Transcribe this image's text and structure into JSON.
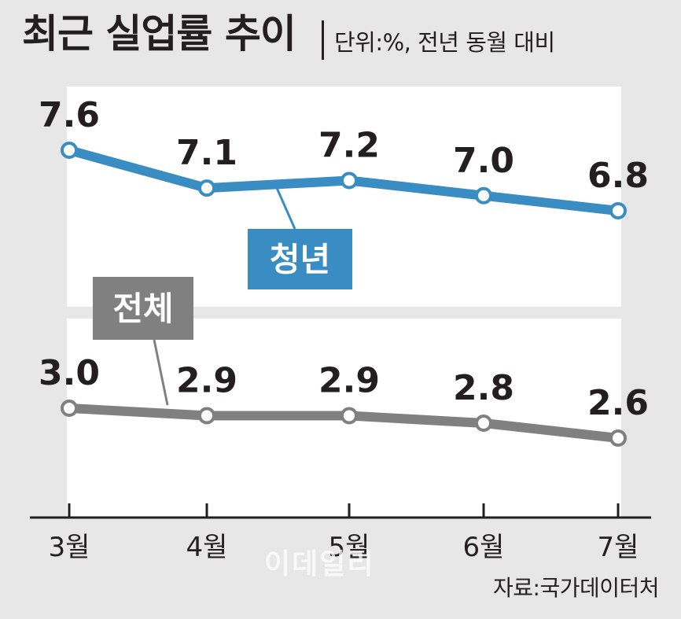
{
  "title": "최근 실업률 추이",
  "unit_note": "단위:%, 전년 동월 대비",
  "source": "자료:국가데이터처",
  "watermark": "이데일리",
  "colors": {
    "background": "#e7e7e7",
    "panel": "#ffffff",
    "youth": "#3a8dc3",
    "total": "#808080",
    "text": "#231f20"
  },
  "chart_data": {
    "type": "line",
    "categories": [
      "3월",
      "4월",
      "5월",
      "6월",
      "7월"
    ],
    "series": [
      {
        "name": "청년",
        "values": [
          7.6,
          7.1,
          7.2,
          7.0,
          6.8
        ],
        "labels": [
          "7.6",
          "7.1",
          "7.2",
          "7.0",
          "6.8"
        ]
      },
      {
        "name": "전체",
        "values": [
          3.0,
          2.9,
          2.9,
          2.8,
          2.6
        ],
        "labels": [
          "3.0",
          "2.9",
          "2.9",
          "2.8",
          "2.6"
        ]
      }
    ],
    "xlabel": "",
    "ylabel": "",
    "y_axis": "broken (two separate panels)",
    "grid": false
  }
}
